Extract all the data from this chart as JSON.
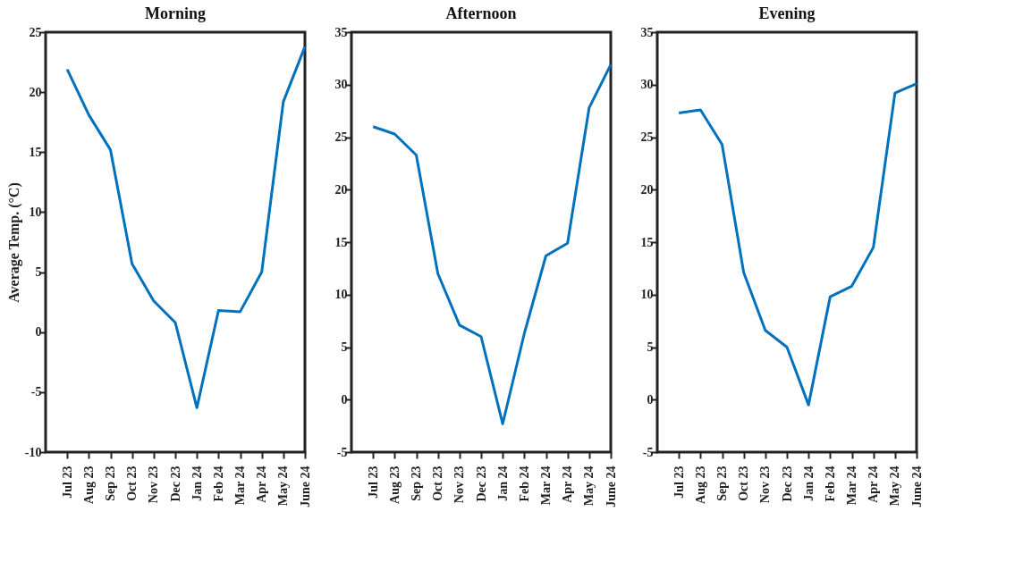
{
  "chart_data": [
    {
      "type": "line",
      "title": "Morning",
      "ylabel": "Average Temp. (°C)",
      "categories": [
        "Jul 23",
        "Aug 23",
        "Sep 23",
        "Oct 23",
        "Nov 23",
        "Dec 23",
        "Jan 24",
        "Feb 24",
        "Mar 24",
        "Apr 24",
        "May 24",
        "June 24"
      ],
      "series": [
        {
          "color": "#0072bd",
          "values": [
            21.9,
            18.1,
            15.2,
            5.7,
            2.6,
            0.8,
            -6.3,
            1.8,
            1.7,
            5.0,
            19.2,
            23.8
          ]
        }
      ],
      "ylim": [
        -10,
        25
      ],
      "yticks": [
        -10,
        -5,
        0,
        5,
        10,
        15,
        20,
        25
      ],
      "grid": false,
      "marker": "none",
      "line_style": "solid"
    },
    {
      "type": "line",
      "title": "Afternoon",
      "categories": [
        "Jul 23",
        "Aug 23",
        "Sep 23",
        "Oct 23",
        "Nov 23",
        "Dec 23",
        "Jan 24",
        "Feb 24",
        "Mar 24",
        "Apr 24",
        "May 24",
        "June 24"
      ],
      "series": [
        {
          "color": "#0072bd",
          "values": [
            26.0,
            25.3,
            23.3,
            12.0,
            7.1,
            6.0,
            -2.3,
            6.3,
            13.7,
            14.9,
            27.8,
            31.9
          ]
        }
      ],
      "ylim": [
        -5,
        35
      ],
      "yticks": [
        -5,
        0,
        5,
        10,
        15,
        20,
        25,
        30,
        35
      ],
      "grid": false,
      "marker": "none",
      "line_style": "solid"
    },
    {
      "type": "line",
      "title": "Evening",
      "categories": [
        "Jul 23",
        "Aug 23",
        "Sep 23",
        "Oct 23",
        "Nov 23",
        "Dec 23",
        "Jan 24",
        "Feb 24",
        "Mar 24",
        "Apr 24",
        "May 24",
        "June 24"
      ],
      "series": [
        {
          "color": "#0072bd",
          "values": [
            27.3,
            27.6,
            24.3,
            12.1,
            6.6,
            5.0,
            -0.5,
            9.8,
            10.8,
            14.5,
            29.2,
            30.1
          ]
        }
      ],
      "ylim": [
        -5,
        35
      ],
      "yticks": [
        -5,
        0,
        5,
        10,
        15,
        20,
        25,
        30,
        35
      ],
      "grid": false,
      "marker": "none",
      "line_style": "solid"
    }
  ]
}
